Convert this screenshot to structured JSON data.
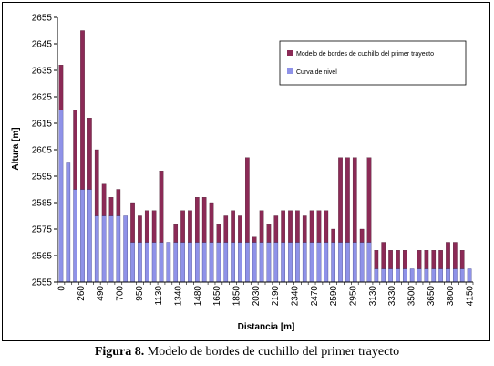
{
  "caption": {
    "prefix": "Figura 8.",
    "text": " Modelo de bordes de cuchillo del primer trayecto"
  },
  "chart_data": {
    "type": "bar",
    "xlabel": "Distancia [m]",
    "ylabel": "Altura [m]",
    "ylim": [
      2555,
      2655
    ],
    "yticks": [
      2555,
      2565,
      2575,
      2585,
      2595,
      2605,
      2615,
      2625,
      2635,
      2645,
      2655
    ],
    "xtick_labels": [
      "0",
      "260",
      "490",
      "700",
      "950",
      "1130",
      "1340",
      "1480",
      "1650",
      "1850",
      "2030",
      "2190",
      "2340",
      "2470",
      "2590",
      "2950",
      "3130",
      "3330",
      "3500",
      "3650",
      "3800",
      "4150"
    ],
    "legend_position": "top-right",
    "grid": false,
    "colors": {
      "knife_edge": "#8b2a56",
      "level_curve": "#8f92e8"
    },
    "series": [
      {
        "name": "Modelo de bordes de cuchillo del primer trayecto",
        "values": [
          2637,
          2600,
          2620,
          2650,
          2617,
          2605,
          2592,
          2587,
          2590,
          2580,
          2585,
          2580,
          2582,
          2582,
          2597,
          2570,
          2577,
          2582,
          2582,
          2587,
          2587,
          2585,
          2577,
          2580,
          2582,
          2580,
          2602,
          2572,
          2582,
          2577,
          2580,
          2582,
          2582,
          2582,
          2580,
          2582,
          2582,
          2582,
          2575,
          2602,
          2602,
          2602,
          2575,
          2602,
          2567,
          2570,
          2567,
          2567,
          2567,
          2560,
          2567,
          2567,
          2567,
          2567,
          2570,
          2570,
          2567,
          2560
        ]
      },
      {
        "name": "Curva de nivel",
        "values": [
          2620,
          2600,
          2590,
          2590,
          2590,
          2580,
          2580,
          2580,
          2580,
          2580,
          2570,
          2570,
          2570,
          2570,
          2570,
          2570,
          2570,
          2570,
          2570,
          2570,
          2570,
          2570,
          2570,
          2570,
          2570,
          2570,
          2570,
          2570,
          2570,
          2570,
          2570,
          2570,
          2570,
          2570,
          2570,
          2570,
          2570,
          2570,
          2570,
          2570,
          2570,
          2570,
          2570,
          2570,
          2560,
          2560,
          2560,
          2560,
          2560,
          2560,
          2560,
          2560,
          2560,
          2560,
          2560,
          2560,
          2560,
          2560
        ]
      }
    ]
  }
}
